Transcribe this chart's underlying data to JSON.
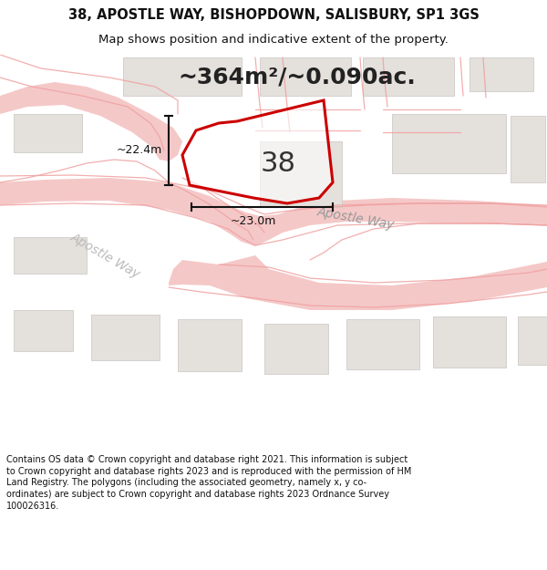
{
  "title_line1": "38, APOSTLE WAY, BISHOPDOWN, SALISBURY, SP1 3GS",
  "title_line2": "Map shows position and indicative extent of the property.",
  "area_text": "~364m²/~0.090ac.",
  "plot_number": "38",
  "dim_vertical": "~22.4m",
  "dim_horizontal": "~23.0m",
  "street_label_upper": "Apostle Way",
  "street_label_lower": "Apostle Way",
  "footer_text": "Contains OS data © Crown copyright and database right 2021. This information is subject to Crown copyright and database rights 2023 and is reproduced with the permission of HM Land Registry. The polygons (including the associated geometry, namely x, y co-ordinates) are subject to Crown copyright and database rights 2023 Ordnance Survey 100026316.",
  "bg_color": "#f2f0ee",
  "map_bg": "#f2f0ee",
  "road_color": "#f5c8c8",
  "road_line_color": "#f0a0a0",
  "building_color": "#e4e0dc",
  "building_ec": "#d0ccc8",
  "plot_outline_color": "#cc0000",
  "dim_color": "#111111",
  "footer_bg": "#ffffff",
  "title_fontsize": 10.5,
  "subtitle_fontsize": 9.5,
  "area_fontsize": 18,
  "plot_num_fontsize": 22,
  "dim_fontsize": 9,
  "street_fontsize": 10
}
